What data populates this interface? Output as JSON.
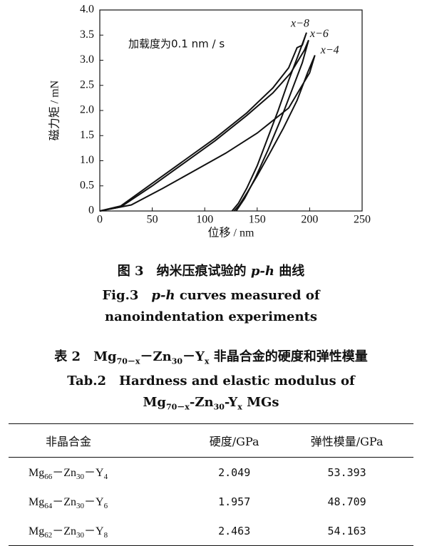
{
  "chart_data": {
    "type": "line",
    "annotation": "加载度为0.1 nm / s",
    "x_label": "位移 / nm",
    "y_label": "磁力矩 / mN",
    "xlim": [
      0,
      250
    ],
    "ylim": [
      0,
      4
    ],
    "xticks": [
      0,
      50,
      100,
      150,
      200,
      250
    ],
    "yticks": [
      0,
      0.5,
      {
        "value": 1,
        "label": "1.0"
      },
      1.5,
      {
        "value": 2,
        "label": "2.0"
      },
      2.5,
      {
        "value": 3,
        "label": "3.0"
      },
      3.5,
      {
        "value": 4,
        "label": "4.0"
      }
    ],
    "series": [
      {
        "name": "x−8",
        "color": "#111111",
        "x": [
          0,
          20,
          50,
          80,
          110,
          140,
          165,
          180,
          188,
          193,
          197,
          190,
          180,
          170,
          160,
          150,
          140,
          132,
          126
        ],
        "values": [
          0,
          0.1,
          0.55,
          1.0,
          1.45,
          1.95,
          2.45,
          2.85,
          3.25,
          3.3,
          3.55,
          3.15,
          2.6,
          2.0,
          1.45,
          0.9,
          0.45,
          0.15,
          0
        ]
      },
      {
        "name": "x−6",
        "color": "#111111",
        "x": [
          0,
          20,
          50,
          80,
          110,
          140,
          165,
          182,
          195,
          199,
          193,
          183,
          172,
          160,
          148,
          138,
          130
        ],
        "values": [
          0,
          0.08,
          0.5,
          0.95,
          1.4,
          1.9,
          2.35,
          2.75,
          3.2,
          3.4,
          2.95,
          2.4,
          1.8,
          1.2,
          0.65,
          0.25,
          0
        ]
      },
      {
        "name": "x−4",
        "color": "#111111",
        "x": [
          0,
          30,
          60,
          90,
          120,
          150,
          180,
          200,
          205,
          198,
          188,
          175,
          162,
          150,
          140,
          133,
          128
        ],
        "values": [
          0,
          0.12,
          0.45,
          0.8,
          1.15,
          1.55,
          2.05,
          2.75,
          3.1,
          2.75,
          2.2,
          1.65,
          1.15,
          0.7,
          0.35,
          0.12,
          0
        ]
      }
    ]
  },
  "figure_caption": {
    "cn": [
      {
        "text": "图 3　纳米压痕试验的 "
      },
      {
        "em": "p-h"
      },
      {
        "text": " 曲线"
      }
    ],
    "en1": [
      {
        "text": "Fig.3　"
      },
      {
        "em": "p-h"
      },
      {
        "text": " curves measured of"
      }
    ],
    "en2": [
      {
        "text": "nanoindentation experiments"
      }
    ]
  },
  "table_caption": {
    "cn": [
      {
        "text": "表 2　Mg"
      },
      {
        "sub": "70－x"
      },
      {
        "text": "－Zn"
      },
      {
        "sub": "30"
      },
      {
        "text": "－Y"
      },
      {
        "sub": "x"
      },
      {
        "text": " 非晶合金的硬度和弹性模量"
      }
    ],
    "en1": [
      {
        "text": "Tab.2　Hardness and elastic modulus of"
      }
    ],
    "en2": [
      {
        "text": "Mg"
      },
      {
        "sub": "70－x"
      },
      {
        "text": "-Zn"
      },
      {
        "sub": "30"
      },
      {
        "text": "-Y"
      },
      {
        "sub": "x"
      },
      {
        "text": " MGs"
      }
    ]
  },
  "table": {
    "header": [
      "非晶合金",
      "硬度/GPa",
      "弹性模量/GPa"
    ],
    "rows": [
      {
        "alloy": [
          {
            "text": "Mg"
          },
          {
            "sub": "66"
          },
          {
            "text": "－Zn"
          },
          {
            "sub": "30"
          },
          {
            "text": "－Y"
          },
          {
            "sub": "4"
          }
        ],
        "hardness": 2.049,
        "modulus": 53.393
      },
      {
        "alloy": [
          {
            "text": "Mg"
          },
          {
            "sub": "64"
          },
          {
            "text": "－Zn"
          },
          {
            "sub": "30"
          },
          {
            "text": "－Y"
          },
          {
            "sub": "6"
          }
        ],
        "hardness": 1.957,
        "modulus": 48.709
      },
      {
        "alloy": [
          {
            "text": "Mg"
          },
          {
            "sub": "62"
          },
          {
            "text": "－Zn"
          },
          {
            "sub": "30"
          },
          {
            "text": "－Y"
          },
          {
            "sub": "8"
          }
        ],
        "hardness": 2.463,
        "modulus": 54.163
      }
    ]
  }
}
